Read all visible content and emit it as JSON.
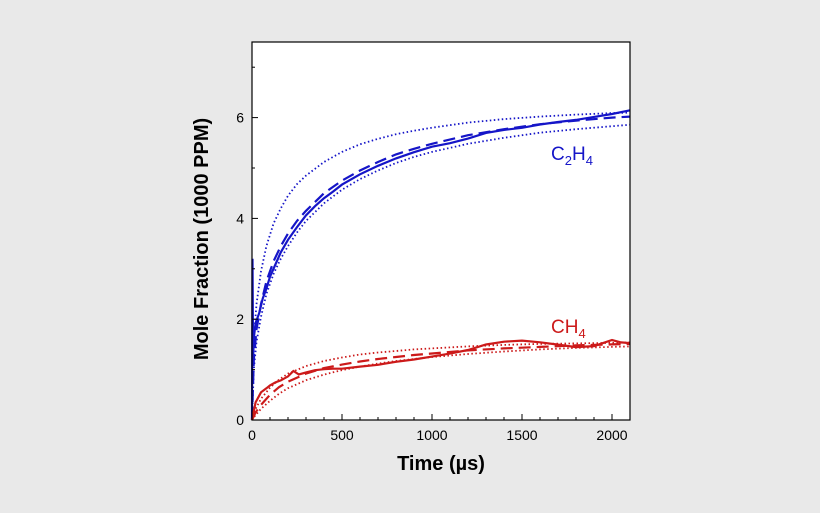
{
  "colors": {
    "background": "#e9e9e9",
    "plot_background": "#ffffff",
    "blue": "#1515c8",
    "red": "#cc1a1a"
  },
  "chart_data": {
    "type": "line",
    "title": "",
    "xlabel": "Time (µs)",
    "ylabel": "Mole Fraction (1000 PPM)",
    "xlim": [
      0,
      2100
    ],
    "ylim": [
      0,
      7.5
    ],
    "xticks": [
      0,
      500,
      1000,
      1500,
      2000
    ],
    "yticks": [
      0,
      2,
      4,
      6
    ],
    "grid": false,
    "legend": "none",
    "labels": [
      {
        "text": "C",
        "sub": "2",
        "text2": "H",
        "sub2": "4",
        "color": "blue"
      },
      {
        "text": "CH",
        "sub": "4",
        "text2": "",
        "sub2": "",
        "color": "red"
      }
    ],
    "series": [
      {
        "color": "blue",
        "style": "solid",
        "group": "C2H4",
        "x": [
          0,
          3,
          6,
          10,
          20,
          40,
          60,
          80,
          100,
          130,
          160,
          200,
          250,
          300,
          350,
          400,
          450,
          500,
          600,
          700,
          800,
          900,
          1000,
          1100,
          1200,
          1300,
          1400,
          1500,
          1600,
          1700,
          1800,
          1900,
          2000,
          2100
        ],
        "y": [
          0,
          3.2,
          1.2,
          1.6,
          1.9,
          2.1,
          2.4,
          2.6,
          2.85,
          3.1,
          3.35,
          3.6,
          3.85,
          4.08,
          4.25,
          4.4,
          4.52,
          4.65,
          4.85,
          5.02,
          5.17,
          5.3,
          5.42,
          5.5,
          5.6,
          5.72,
          5.78,
          5.82,
          5.88,
          5.92,
          5.95,
          6.0,
          6.05,
          6.12
        ]
      },
      {
        "color": "blue",
        "style": "dashed",
        "group": "C2H4",
        "x": [
          0,
          10,
          25,
          50,
          80,
          120,
          160,
          200,
          250,
          300,
          400,
          500,
          600,
          700,
          800,
          900,
          1000,
          1200,
          1400,
          1600,
          1800,
          2000,
          2100
        ],
        "y": [
          0,
          1.2,
          1.8,
          2.3,
          2.75,
          3.15,
          3.45,
          3.7,
          3.95,
          4.15,
          4.5,
          4.75,
          4.95,
          5.12,
          5.27,
          5.38,
          5.48,
          5.65,
          5.77,
          5.87,
          5.94,
          6.0,
          6.02
        ]
      },
      {
        "color": "blue",
        "style": "dotted",
        "group": "C2H4",
        "x": [
          0,
          10,
          25,
          50,
          80,
          120,
          160,
          200,
          250,
          300,
          400,
          500,
          600,
          700,
          800,
          900,
          1000,
          1200,
          1400,
          1600,
          1800,
          2000,
          2100
        ],
        "y": [
          0,
          1.6,
          2.3,
          2.95,
          3.45,
          3.9,
          4.2,
          4.45,
          4.68,
          4.85,
          5.12,
          5.32,
          5.47,
          5.58,
          5.67,
          5.74,
          5.8,
          5.9,
          5.97,
          6.02,
          6.06,
          6.09,
          6.1
        ]
      },
      {
        "color": "blue",
        "style": "dotted",
        "group": "C2H4",
        "x": [
          0,
          10,
          25,
          50,
          80,
          120,
          160,
          200,
          250,
          300,
          400,
          500,
          600,
          700,
          800,
          900,
          1000,
          1200,
          1400,
          1600,
          1800,
          2000,
          2100
        ],
        "y": [
          0,
          1.0,
          1.55,
          2.05,
          2.5,
          2.9,
          3.2,
          3.45,
          3.72,
          3.95,
          4.3,
          4.57,
          4.78,
          4.95,
          5.1,
          5.22,
          5.32,
          5.48,
          5.6,
          5.7,
          5.77,
          5.83,
          5.86
        ]
      },
      {
        "color": "red",
        "style": "solid",
        "group": "CH4",
        "x": [
          0,
          20,
          50,
          80,
          100,
          130,
          160,
          200,
          230,
          260,
          300,
          350,
          400,
          450,
          500,
          600,
          700,
          800,
          900,
          1000,
          1100,
          1200,
          1300,
          1400,
          1500,
          1600,
          1700,
          1800,
          1900,
          2000,
          2050,
          2100
        ],
        "y": [
          0,
          0.35,
          0.55,
          0.65,
          0.7,
          0.75,
          0.78,
          0.85,
          0.95,
          0.88,
          0.92,
          0.97,
          1.0,
          1.02,
          1.03,
          1.08,
          1.12,
          1.18,
          1.22,
          1.27,
          1.32,
          1.38,
          1.48,
          1.53,
          1.55,
          1.52,
          1.48,
          1.44,
          1.47,
          1.6,
          1.56,
          1.55
        ]
      },
      {
        "color": "red",
        "style": "dashed",
        "group": "CH4",
        "x": [
          0,
          20,
          50,
          100,
          150,
          200,
          300,
          400,
          500,
          600,
          700,
          800,
          900,
          1000,
          1200,
          1400,
          1600,
          1800,
          2000,
          2100
        ],
        "y": [
          0,
          0.15,
          0.3,
          0.5,
          0.65,
          0.76,
          0.92,
          1.03,
          1.1,
          1.16,
          1.21,
          1.25,
          1.29,
          1.32,
          1.38,
          1.42,
          1.45,
          1.48,
          1.5,
          1.51
        ]
      },
      {
        "color": "red",
        "style": "dotted",
        "group": "CH4",
        "x": [
          0,
          20,
          50,
          100,
          150,
          200,
          300,
          400,
          500,
          600,
          700,
          800,
          900,
          1000,
          1200,
          1400,
          1600,
          1800,
          2000,
          2100
        ],
        "y": [
          0,
          0.22,
          0.42,
          0.64,
          0.8,
          0.92,
          1.07,
          1.17,
          1.24,
          1.3,
          1.34,
          1.37,
          1.4,
          1.42,
          1.46,
          1.49,
          1.51,
          1.52,
          1.53,
          1.54
        ]
      },
      {
        "color": "red",
        "style": "dotted",
        "group": "CH4",
        "x": [
          0,
          20,
          50,
          100,
          150,
          200,
          300,
          400,
          500,
          600,
          700,
          800,
          900,
          1000,
          1200,
          1400,
          1600,
          1800,
          2000,
          2100
        ],
        "y": [
          0,
          0.1,
          0.22,
          0.38,
          0.52,
          0.63,
          0.79,
          0.9,
          0.99,
          1.06,
          1.12,
          1.17,
          1.21,
          1.25,
          1.31,
          1.36,
          1.4,
          1.43,
          1.45,
          1.46
        ]
      }
    ]
  }
}
